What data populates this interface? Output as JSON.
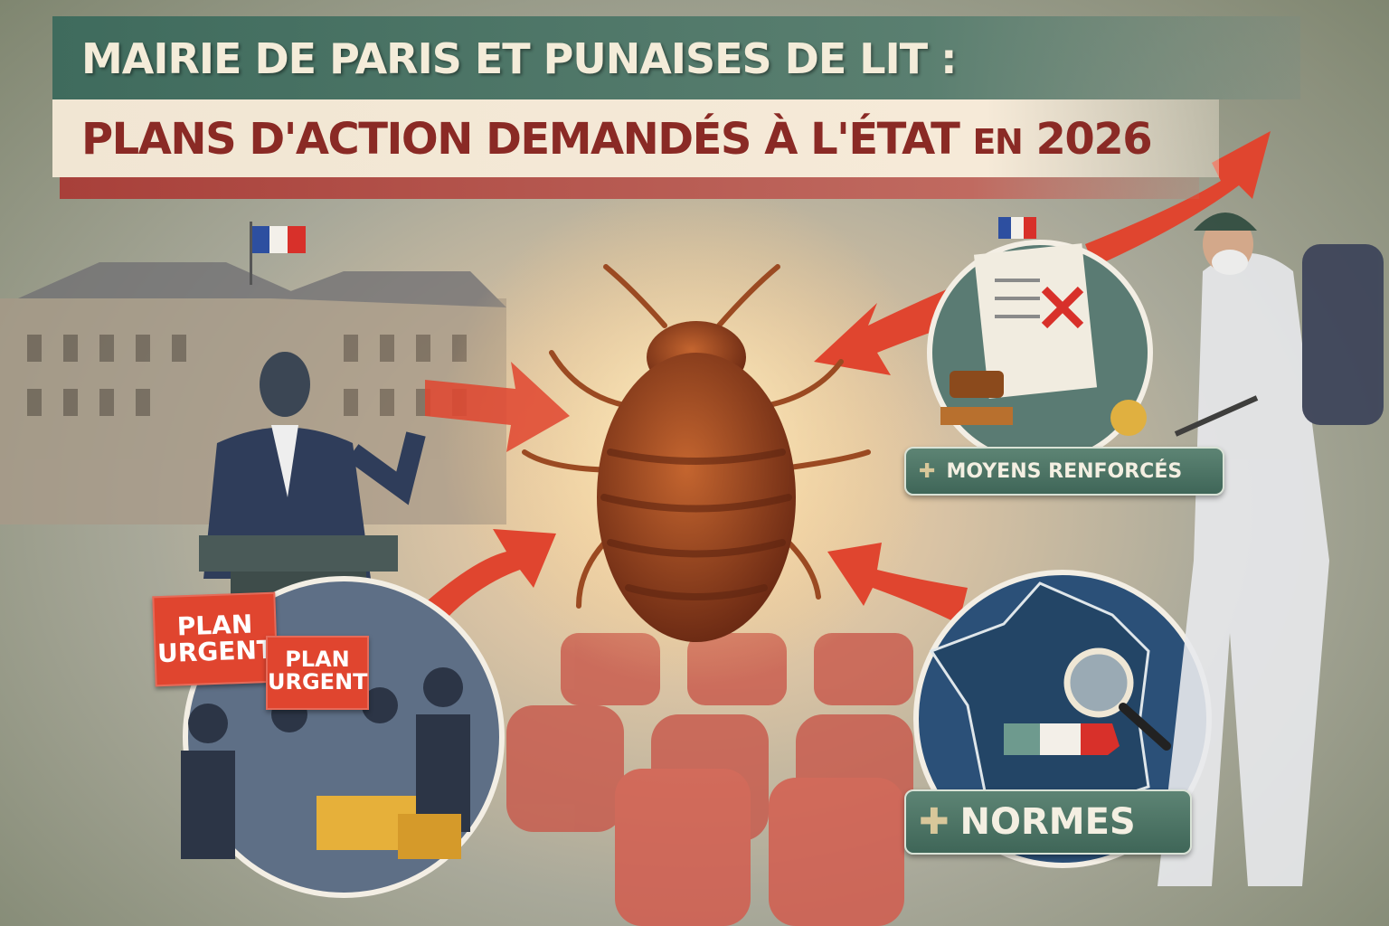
{
  "title": {
    "line1": "MAIRIE DE PARIS ET PUNAISES DE LIT :",
    "line2_main": "PLANS D'ACTION DEMANDÉS À L'ÉTAT",
    "line2_small": "EN",
    "line2_year": "2026"
  },
  "signs": [
    {
      "line1": "PLAN",
      "line2": "URGENT"
    },
    {
      "line1": "PLAN",
      "line2": "URGENT"
    }
  ],
  "tags": {
    "moyens": {
      "icon": "plus-icon",
      "label": "MOYENS RENFORCÉS"
    },
    "normes": {
      "icon": "plus-icon",
      "label": "NORMES"
    }
  },
  "colors": {
    "banner_green": "#3f6b5d",
    "banner_cream": "#f1e6d3",
    "title_red": "#8a2a25",
    "arrow_red": "#e0452f",
    "bug_brown": "#8a3a1c",
    "flag_blue": "#2d4fa0",
    "flag_red": "#d8302a"
  }
}
